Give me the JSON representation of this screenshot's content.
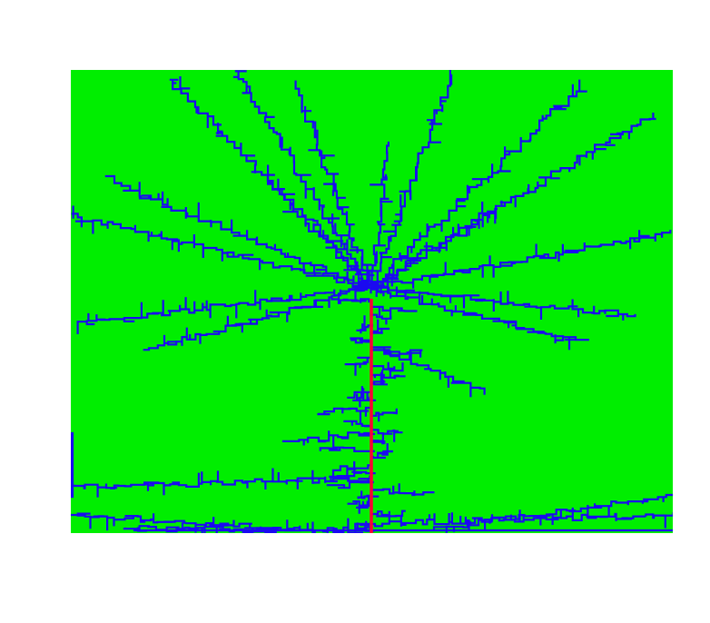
{
  "figure": {
    "description_free": true,
    "background_color": "#00ee00",
    "branch_color": "#1a0af0",
    "trunk_color": "#ff0033",
    "outer_background": "#ffffff"
  }
}
